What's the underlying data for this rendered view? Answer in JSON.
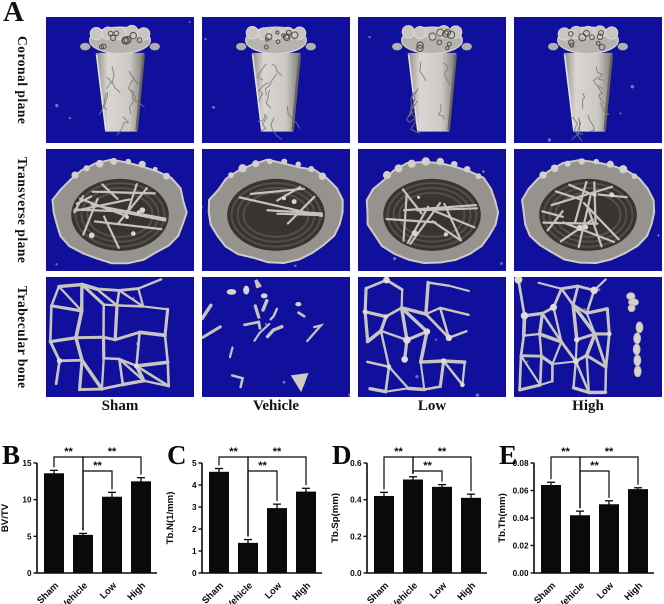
{
  "panelA": {
    "label": "A",
    "row_labels": [
      "Coronal plane",
      "Transverse plane",
      "Trabecular bone"
    ],
    "column_labels": [
      "Sham",
      "Vehicle",
      "Low",
      "High"
    ],
    "colors": {
      "image_background": "#10109c",
      "bone_light": "#d9d6d2",
      "bone_mid": "#b5b2ae",
      "bone_dark": "#55524e"
    },
    "cells": [
      [
        {
          "type": "coronal",
          "col": "Sham",
          "density": 0.9
        },
        {
          "type": "coronal",
          "col": "Vehicle",
          "density": 0.6
        },
        {
          "type": "coronal",
          "col": "Low",
          "density": 0.75
        },
        {
          "type": "coronal",
          "col": "High",
          "density": 0.85
        }
      ],
      [
        {
          "type": "transverse",
          "col": "Sham",
          "density": 0.9
        },
        {
          "type": "transverse",
          "col": "Vehicle",
          "density": 0.35
        },
        {
          "type": "transverse",
          "col": "Low",
          "density": 0.6
        },
        {
          "type": "transverse",
          "col": "High",
          "density": 0.85
        }
      ],
      [
        {
          "type": "trabecular",
          "col": "Sham",
          "density": 0.92
        },
        {
          "type": "trabecular",
          "col": "Vehicle",
          "density": 0.3
        },
        {
          "type": "trabecular",
          "col": "Low",
          "density": 0.65
        },
        {
          "type": "trabecular",
          "col": "High",
          "density": 0.88
        }
      ]
    ]
  },
  "chart_data": [
    {
      "type": "bar",
      "label": "B",
      "ylabel": "BV/TV",
      "ylim": [
        0,
        15
      ],
      "yticks": [
        "0",
        "5",
        "10",
        "15"
      ],
      "categories": [
        "Sham",
        "Vehicle",
        "Low",
        "High"
      ],
      "values": [
        13.6,
        5.2,
        10.4,
        12.5
      ],
      "errors": [
        0.4,
        0.2,
        0.6,
        0.5
      ],
      "bar_color": "#0a0a0a",
      "significance": [
        {
          "a": 0,
          "b": 1,
          "label": "**",
          "level": 1
        },
        {
          "a": 1,
          "b": 3,
          "label": "**",
          "level": 1
        },
        {
          "a": 1,
          "b": 2,
          "label": "**",
          "level": 2
        }
      ]
    },
    {
      "type": "bar",
      "label": "C",
      "ylabel": "Tb.N(1/mm)",
      "ylim": [
        0,
        5
      ],
      "yticks": [
        "0",
        "1",
        "2",
        "3",
        "4",
        "5"
      ],
      "categories": [
        "Sham",
        "Vehicle",
        "Low",
        "High"
      ],
      "values": [
        4.6,
        1.37,
        2.95,
        3.7
      ],
      "errors": [
        0.15,
        0.15,
        0.18,
        0.15
      ],
      "bar_color": "#0a0a0a",
      "significance": [
        {
          "a": 0,
          "b": 1,
          "label": "**",
          "level": 1
        },
        {
          "a": 1,
          "b": 3,
          "label": "**",
          "level": 1
        },
        {
          "a": 1,
          "b": 2,
          "label": "**",
          "level": 2
        }
      ]
    },
    {
      "type": "bar",
      "label": "D",
      "ylabel": "Tb.Sp(mm)",
      "ylim": [
        0,
        0.6
      ],
      "yticks": [
        "0.0",
        "0.2",
        "0.4",
        "0.6"
      ],
      "categories": [
        "Sham",
        "Vehicle",
        "Low",
        "High"
      ],
      "values": [
        0.42,
        0.51,
        0.47,
        0.41
      ],
      "errors": [
        0.02,
        0.015,
        0.012,
        0.02
      ],
      "bar_color": "#0a0a0a",
      "significance": [
        {
          "a": 0,
          "b": 1,
          "label": "**",
          "level": 1
        },
        {
          "a": 1,
          "b": 3,
          "label": "**",
          "level": 1
        },
        {
          "a": 1,
          "b": 2,
          "label": "**",
          "level": 2
        }
      ]
    },
    {
      "type": "bar",
      "label": "E",
      "ylabel": "Tb.Th(mm)",
      "ylim": [
        0,
        0.08
      ],
      "yticks": [
        "0.00",
        "0.02",
        "0.04",
        "0.06",
        "0.08"
      ],
      "categories": [
        "Sham",
        "Vehicle",
        "Low",
        "High"
      ],
      "values": [
        0.064,
        0.042,
        0.05,
        0.061
      ],
      "errors": [
        0.002,
        0.003,
        0.0025,
        0.001
      ],
      "bar_color": "#0a0a0a",
      "significance": [
        {
          "a": 0,
          "b": 1,
          "label": "**",
          "level": 1
        },
        {
          "a": 1,
          "b": 3,
          "label": "**",
          "level": 1
        },
        {
          "a": 1,
          "b": 2,
          "label": "**",
          "level": 2
        }
      ]
    }
  ]
}
